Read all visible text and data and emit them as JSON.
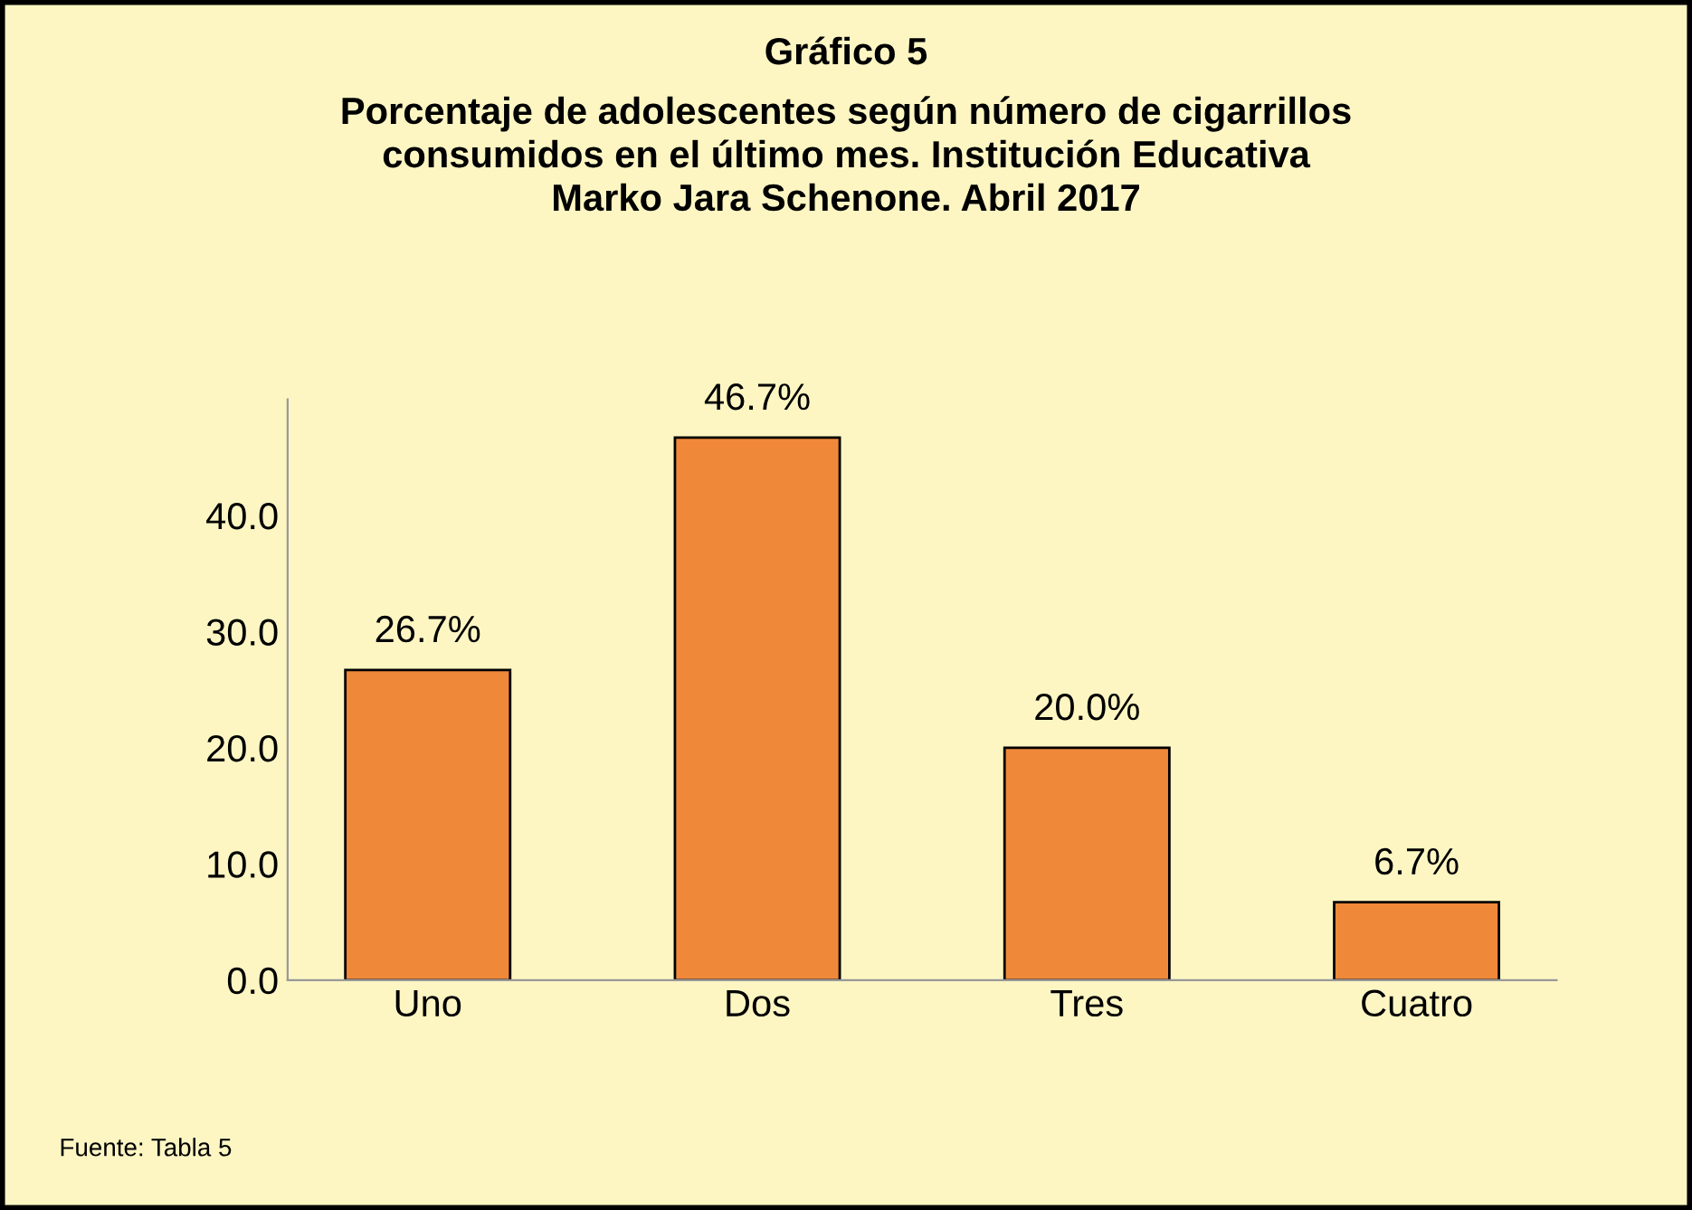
{
  "chart_data": {
    "type": "bar",
    "title": "Gráfico 5",
    "subtitle": "Porcentaje de adolescentes según número de cigarrillos\nconsumidos en el último mes. Institución Educativa\nMarko Jara Schenone. Abril 2017",
    "categories": [
      "Uno",
      "Dos",
      "Tres",
      "Cuatro"
    ],
    "values": [
      26.7,
      46.7,
      20.0,
      6.7
    ],
    "value_labels": [
      "26.7%",
      "46.7%",
      "20.0%",
      "6.7%"
    ],
    "color": "#f0883a",
    "ylim": [
      0,
      50
    ],
    "yticks": [
      {
        "value": 0,
        "label": "0.0"
      },
      {
        "value": 10,
        "label": "10.0"
      },
      {
        "value": 20,
        "label": "20.0"
      },
      {
        "value": 30,
        "label": "30.0"
      },
      {
        "value": 40,
        "label": "40.0"
      }
    ],
    "grid": false,
    "annotations": [
      "Fuente: Tabla 5"
    ]
  }
}
